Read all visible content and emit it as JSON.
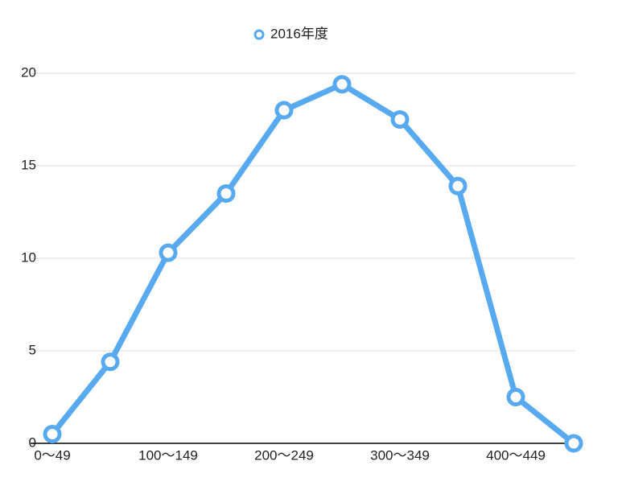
{
  "chart_data": {
    "type": "line",
    "categories": [
      "0〜49",
      null,
      "100〜149",
      null,
      "200〜249",
      null,
      "300〜349",
      null,
      "400〜449",
      null
    ],
    "series": [
      {
        "name": "2016年度",
        "color": "#57a9f0",
        "values": [
          0.5,
          4.4,
          10.3,
          13.5,
          18.0,
          19.4,
          17.5,
          13.9,
          2.5,
          0.0
        ]
      }
    ],
    "ylim": [
      0,
      20
    ],
    "yticks": [
      0,
      5,
      10,
      15,
      20
    ],
    "grid": true,
    "legend": "top"
  }
}
